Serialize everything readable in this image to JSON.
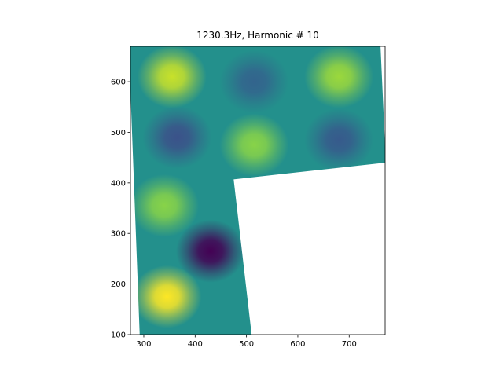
{
  "chart_data": {
    "type": "contour",
    "title": "1230.3Hz, Harmonic # 10",
    "xlim": [
      274,
      770
    ],
    "ylim": [
      100,
      670
    ],
    "xticks": [
      300,
      400,
      500,
      600,
      700
    ],
    "yticks": [
      100,
      200,
      300,
      400,
      500,
      600
    ],
    "colormap": "viridis",
    "base_level": 0.5,
    "domain": {
      "x": [
        274,
        274,
        292,
        510,
        475,
        770,
        770,
        761
      ],
      "y": [
        670,
        583,
        100,
        100,
        407,
        440,
        471,
        670
      ]
    },
    "peaks": [
      {
        "x": 355,
        "y": 610,
        "level": 0.92
      },
      {
        "x": 515,
        "y": 600,
        "level": 0.32
      },
      {
        "x": 680,
        "y": 610,
        "level": 0.85
      },
      {
        "x": 365,
        "y": 490,
        "level": 0.25
      },
      {
        "x": 515,
        "y": 475,
        "level": 0.82
      },
      {
        "x": 680,
        "y": 485,
        "level": 0.28
      },
      {
        "x": 340,
        "y": 355,
        "level": 0.82
      },
      {
        "x": 430,
        "y": 265,
        "level": 0.0
      },
      {
        "x": 345,
        "y": 175,
        "level": 1.0
      }
    ]
  }
}
